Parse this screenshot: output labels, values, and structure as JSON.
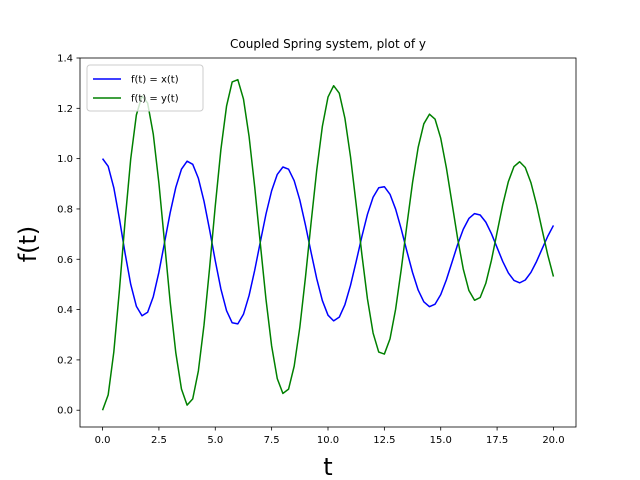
{
  "chart_data": {
    "type": "line",
    "title": "Coupled Spring system, plot of y",
    "xlabel": "t",
    "ylabel": "f(t)",
    "xlim": [
      -1.0,
      21.0
    ],
    "ylim": [
      -0.0667,
      1.4
    ],
    "xticks": [
      0.0,
      2.5,
      5.0,
      7.5,
      10.0,
      12.5,
      15.0,
      17.5,
      20.0
    ],
    "xtick_labels": [
      "0.0",
      "2.5",
      "5.0",
      "7.5",
      "10.0",
      "12.5",
      "15.0",
      "17.5",
      "20.0"
    ],
    "yticks": [
      0.0,
      0.2,
      0.4,
      0.6,
      0.8,
      1.0,
      1.2,
      1.4
    ],
    "ytick_labels": [
      "0.0",
      "0.2",
      "0.4",
      "0.6",
      "0.8",
      "1.0",
      "1.2",
      "1.4"
    ],
    "grid": false,
    "legend_position": "top-left",
    "series": [
      {
        "name": "f(t) = x(t)",
        "color": "#0000ff",
        "x": [
          0,
          0.25,
          0.5,
          0.75,
          1,
          1.25,
          1.5,
          1.75,
          2,
          2.25,
          2.5,
          2.75,
          3,
          3.25,
          3.5,
          3.75,
          4,
          4.25,
          4.5,
          4.75,
          5,
          5.25,
          5.5,
          5.75,
          6,
          6.25,
          6.5,
          6.75,
          7,
          7.25,
          7.5,
          7.75,
          8,
          8.25,
          8.5,
          8.75,
          9,
          9.25,
          9.5,
          9.75,
          10,
          10.25,
          10.5,
          10.75,
          11,
          11.25,
          11.5,
          11.75,
          12,
          12.25,
          12.5,
          12.75,
          13,
          13.25,
          13.5,
          13.75,
          14,
          14.25,
          14.5,
          14.75,
          15,
          15.25,
          15.5,
          15.75,
          16,
          16.25,
          16.5,
          16.75,
          17,
          17.25,
          17.5,
          17.75,
          18,
          18.25,
          18.5,
          18.75,
          19,
          19.25,
          19.5,
          19.75,
          20
        ],
        "y": [
          1.0,
          0.9696,
          0.8842,
          0.7606,
          0.6236,
          0.5004,
          0.4133,
          0.3753,
          0.3896,
          0.4512,
          0.5488,
          0.6667,
          0.7851,
          0.8861,
          0.9579,
          0.9899,
          0.9774,
          0.922,
          0.8308,
          0.7164,
          0.594,
          0.4816,
          0.3956,
          0.3476,
          0.3431,
          0.3813,
          0.4561,
          0.5568,
          0.6698,
          0.7799,
          0.8724,
          0.9372,
          0.9667,
          0.9581,
          0.9125,
          0.8352,
          0.736,
          0.6273,
          0.5229,
          0.4359,
          0.3777,
          0.3551,
          0.3699,
          0.4197,
          0.4969,
          0.5912,
          0.6895,
          0.7787,
          0.8466,
          0.8844,
          0.8884,
          0.8583,
          0.799,
          0.7196,
          0.6318,
          0.5474,
          0.4775,
          0.4308,
          0.4117,
          0.4217,
          0.4594,
          0.5181,
          0.5882,
          0.6587,
          0.7194,
          0.7621,
          0.7815,
          0.776,
          0.7477,
          0.7018,
          0.6466,
          0.5915,
          0.5456,
          0.5157,
          0.5062,
          0.5176,
          0.5476,
          0.5912,
          0.642,
          0.692,
          0.7344
        ]
      },
      {
        "name": "f(t) = y(t)",
        "color": "#008000",
        "x": [
          0,
          0.25,
          0.5,
          0.75,
          1,
          1.25,
          1.5,
          1.75,
          2,
          2.25,
          2.5,
          2.75,
          3,
          3.25,
          3.5,
          3.75,
          4,
          4.25,
          4.5,
          4.75,
          5,
          5.25,
          5.5,
          5.75,
          6,
          6.25,
          6.5,
          6.75,
          7,
          7.25,
          7.5,
          7.75,
          8,
          8.25,
          8.5,
          8.75,
          9,
          9.25,
          9.5,
          9.75,
          10,
          10.25,
          10.5,
          10.75,
          11,
          11.25,
          11.5,
          11.75,
          12,
          12.25,
          12.5,
          12.75,
          13,
          13.25,
          13.5,
          13.75,
          14,
          14.25,
          14.5,
          14.75,
          15,
          15.25,
          15.5,
          15.75,
          16,
          16.25,
          16.5,
          16.75,
          17,
          17.25,
          17.5,
          17.75,
          18,
          18.25,
          18.5,
          18.75,
          19,
          19.25,
          19.5,
          19.75,
          20
        ],
        "y": [
          0.0,
          0.0609,
          0.2317,
          0.4788,
          0.7528,
          0.9992,
          1.1734,
          1.2494,
          1.2208,
          1.0976,
          0.9024,
          0.6667,
          0.4298,
          0.2278,
          0.0842,
          0.0202,
          0.0452,
          0.156,
          0.3384,
          0.5672,
          0.812,
          1.0368,
          1.2088,
          1.3048,
          1.3138,
          1.2374,
          1.0878,
          0.8864,
          0.6604,
          0.4402,
          0.2552,
          0.1256,
          0.0666,
          0.0838,
          0.175,
          0.3296,
          0.528,
          0.7454,
          0.9542,
          1.1282,
          1.2446,
          1.2898,
          1.2602,
          1.1606,
          1.0062,
          0.8176,
          0.621,
          0.4426,
          0.3068,
          0.2312,
          0.2232,
          0.2834,
          0.402,
          0.5608,
          0.7364,
          0.9052,
          1.045,
          1.1384,
          1.1766,
          1.1566,
          1.0812,
          0.9638,
          0.8236,
          0.6826,
          0.5612,
          0.4758,
          0.437,
          0.448,
          0.5046,
          0.5964,
          0.7068,
          0.817,
          0.9088,
          0.9686,
          0.9876,
          0.9648,
          0.9048,
          0.8176,
          0.716,
          0.616,
          0.5312
        ]
      }
    ]
  }
}
